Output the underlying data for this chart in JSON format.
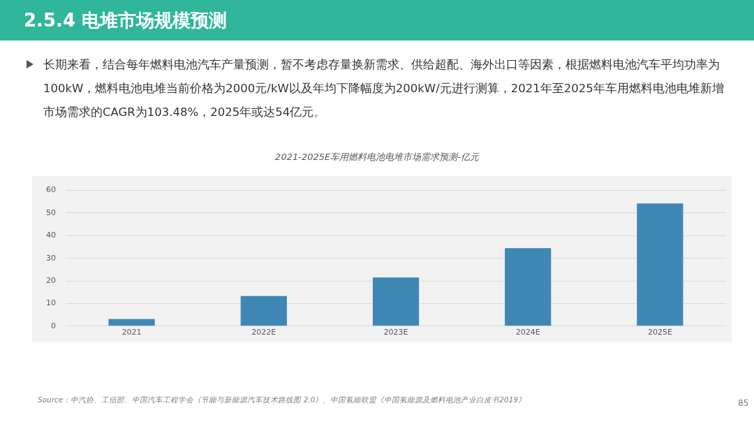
{
  "chart_data": {
    "type": "bar",
    "title": "2021-2025E车用燃料电池电堆市场需求预测-亿元",
    "categories": [
      "2021",
      "2022E",
      "2023E",
      "2024E",
      "2025E"
    ],
    "values": [
      3.1,
      13.3,
      21.5,
      34.5,
      54.2
    ],
    "color": "#3f88b5",
    "ylim": [
      0,
      60
    ],
    "yticks": [
      0,
      10,
      20,
      30,
      40,
      50,
      60
    ],
    "grid": "y",
    "legend": false,
    "annotations": [
      "2.5.4 电堆市场规模预测",
      "长期来看，结合每年燃料电池汽车产量预测，暂不考虑存量换新需求、供给超配、海外出口等因素，根据燃料电池汽车平均功率为100kW，燃料电池电堆当前价格为2000元/kW以及年均下降幅度为200kW/元进行测算，2021年至2025年车用燃料电池电堆新增市场需求的CAGR为103.48%，2025年或达54亿元。",
      "Source：中汽协、工信部、中国汽车工程学会《节能与新能源汽车技术路线图 2.0》、中国氢能联盟《中国氢能源及燃料电池产业白皮书2019》",
      "85"
    ]
  }
}
